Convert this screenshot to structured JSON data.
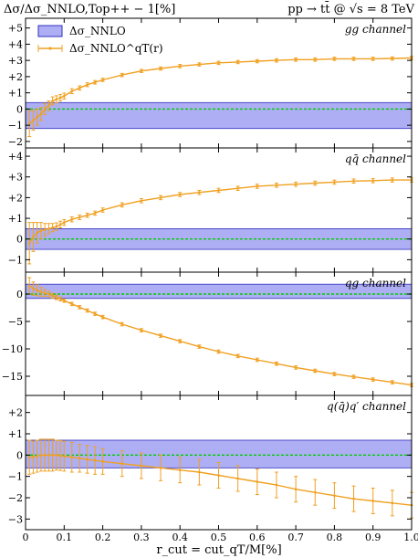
{
  "header": {
    "left_title": "Δσ/Δσ_NNLO,Top++ − 1[%]",
    "right_title": "pp → tt̄ @ √s = 8 TeV"
  },
  "legend": [
    {
      "label": "Δσ_NNLO",
      "color": "#8080ee"
    },
    {
      "label": "Δσ_NNLO^qT(r)",
      "color": "#f0a020"
    }
  ],
  "xlabel": "r_cut = cut_qT/M[%]",
  "colors": {
    "band": "#8c8cf0",
    "band_edge": "#3030c0",
    "series": "#f0a020",
    "zero_line": "#00cc00"
  },
  "chart_data": [
    {
      "type": "line",
      "channel": "gg channel",
      "ylim": [
        -2.4,
        5.6
      ],
      "yticks": [
        -2,
        -1,
        0,
        1,
        2,
        3,
        4,
        5
      ],
      "ytick_labels": [
        "−2",
        "−1",
        "0",
        "+1",
        "+2",
        "+3",
        "+4",
        "+5"
      ],
      "band": [
        -1.2,
        0.4
      ],
      "points": [
        [
          0.01,
          -0.9
        ],
        [
          0.02,
          -0.7
        ],
        [
          0.03,
          -0.5
        ],
        [
          0.04,
          -0.3
        ],
        [
          0.05,
          0.0
        ],
        [
          0.06,
          0.2
        ],
        [
          0.07,
          0.5
        ],
        [
          0.08,
          0.6
        ],
        [
          0.09,
          0.7
        ],
        [
          0.1,
          0.8
        ],
        [
          0.12,
          1.1
        ],
        [
          0.14,
          1.3
        ],
        [
          0.16,
          1.5
        ],
        [
          0.18,
          1.65
        ],
        [
          0.2,
          1.8
        ],
        [
          0.25,
          2.1
        ],
        [
          0.3,
          2.35
        ],
        [
          0.35,
          2.5
        ],
        [
          0.4,
          2.65
        ],
        [
          0.45,
          2.75
        ],
        [
          0.5,
          2.85
        ],
        [
          0.55,
          2.9
        ],
        [
          0.6,
          2.95
        ],
        [
          0.65,
          3.0
        ],
        [
          0.7,
          3.05
        ],
        [
          0.75,
          3.05
        ],
        [
          0.8,
          3.1
        ],
        [
          0.85,
          3.1
        ],
        [
          0.9,
          3.1
        ],
        [
          0.95,
          3.12
        ],
        [
          1.0,
          3.15
        ]
      ],
      "errors": [
        [
          0.01,
          0.8
        ],
        [
          0.02,
          0.6
        ],
        [
          0.03,
          0.5
        ],
        [
          0.04,
          0.4
        ],
        [
          0.05,
          0.35
        ],
        [
          0.06,
          0.3
        ],
        [
          0.07,
          0.25
        ],
        [
          0.08,
          0.22
        ],
        [
          0.09,
          0.2
        ],
        [
          0.1,
          0.18
        ],
        [
          0.12,
          0.15
        ],
        [
          0.14,
          0.13
        ],
        [
          0.16,
          0.12
        ],
        [
          0.18,
          0.11
        ],
        [
          0.2,
          0.1
        ],
        [
          0.25,
          0.1
        ],
        [
          0.3,
          0.1
        ],
        [
          0.35,
          0.1
        ],
        [
          0.4,
          0.1
        ],
        [
          0.45,
          0.1
        ],
        [
          0.5,
          0.1
        ],
        [
          0.55,
          0.1
        ],
        [
          0.6,
          0.1
        ],
        [
          0.65,
          0.1
        ],
        [
          0.7,
          0.1
        ],
        [
          0.75,
          0.1
        ],
        [
          0.8,
          0.1
        ],
        [
          0.85,
          0.1
        ],
        [
          0.9,
          0.1
        ],
        [
          0.95,
          0.1
        ],
        [
          1.0,
          0.1
        ]
      ]
    },
    {
      "type": "line",
      "channel": "qq̄ channel",
      "ylim": [
        -1.6,
        4.4
      ],
      "yticks": [
        -1,
        0,
        1,
        2,
        3,
        4
      ],
      "ytick_labels": [
        "−1",
        "0",
        "+1",
        "+2",
        "+3",
        "+4"
      ],
      "band": [
        -0.5,
        0.5
      ],
      "points": [
        [
          0.01,
          -0.2
        ],
        [
          0.02,
          0.1
        ],
        [
          0.03,
          0.3
        ],
        [
          0.04,
          0.4
        ],
        [
          0.05,
          0.45
        ],
        [
          0.06,
          0.5
        ],
        [
          0.07,
          0.55
        ],
        [
          0.08,
          0.6
        ],
        [
          0.09,
          0.7
        ],
        [
          0.1,
          0.8
        ],
        [
          0.12,
          0.95
        ],
        [
          0.14,
          1.05
        ],
        [
          0.16,
          1.15
        ],
        [
          0.18,
          1.25
        ],
        [
          0.2,
          1.4
        ],
        [
          0.25,
          1.65
        ],
        [
          0.3,
          1.85
        ],
        [
          0.35,
          2.0
        ],
        [
          0.4,
          2.15
        ],
        [
          0.45,
          2.25
        ],
        [
          0.5,
          2.35
        ],
        [
          0.55,
          2.45
        ],
        [
          0.6,
          2.55
        ],
        [
          0.65,
          2.6
        ],
        [
          0.7,
          2.65
        ],
        [
          0.75,
          2.7
        ],
        [
          0.8,
          2.75
        ],
        [
          0.85,
          2.8
        ],
        [
          0.9,
          2.82
        ],
        [
          0.95,
          2.85
        ],
        [
          1.0,
          2.85
        ]
      ],
      "errors": [
        [
          0.01,
          1.0
        ],
        [
          0.02,
          0.7
        ],
        [
          0.03,
          0.5
        ],
        [
          0.04,
          0.4
        ],
        [
          0.05,
          0.3
        ],
        [
          0.06,
          0.25
        ],
        [
          0.07,
          0.2
        ],
        [
          0.08,
          0.18
        ],
        [
          0.09,
          0.16
        ],
        [
          0.1,
          0.14
        ],
        [
          0.12,
          0.12
        ],
        [
          0.14,
          0.11
        ],
        [
          0.16,
          0.1
        ],
        [
          0.18,
          0.1
        ],
        [
          0.2,
          0.1
        ],
        [
          0.25,
          0.1
        ],
        [
          0.3,
          0.1
        ],
        [
          0.35,
          0.1
        ],
        [
          0.4,
          0.1
        ],
        [
          0.45,
          0.1
        ],
        [
          0.5,
          0.1
        ],
        [
          0.55,
          0.1
        ],
        [
          0.6,
          0.1
        ],
        [
          0.65,
          0.1
        ],
        [
          0.7,
          0.1
        ],
        [
          0.75,
          0.1
        ],
        [
          0.8,
          0.1
        ],
        [
          0.85,
          0.1
        ],
        [
          0.9,
          0.1
        ],
        [
          0.95,
          0.1
        ],
        [
          1.0,
          0.1
        ]
      ]
    },
    {
      "type": "line",
      "channel": "qg channel",
      "ylim": [
        -18.5,
        4
      ],
      "yticks": [
        -15,
        -10,
        -5,
        0
      ],
      "ytick_labels": [
        "−15",
        "−10",
        "−5",
        "0"
      ],
      "band": [
        -0.8,
        1.8
      ],
      "points": [
        [
          0.01,
          1.5
        ],
        [
          0.02,
          1.0
        ],
        [
          0.03,
          0.7
        ],
        [
          0.04,
          0.4
        ],
        [
          0.05,
          0.2
        ],
        [
          0.06,
          0.0
        ],
        [
          0.07,
          -0.3
        ],
        [
          0.08,
          -0.6
        ],
        [
          0.09,
          -0.9
        ],
        [
          0.1,
          -1.2
        ],
        [
          0.12,
          -1.8
        ],
        [
          0.14,
          -2.4
        ],
        [
          0.16,
          -3.0
        ],
        [
          0.18,
          -3.6
        ],
        [
          0.2,
          -4.2
        ],
        [
          0.25,
          -5.5
        ],
        [
          0.3,
          -6.6
        ],
        [
          0.35,
          -7.6
        ],
        [
          0.4,
          -8.6
        ],
        [
          0.45,
          -9.6
        ],
        [
          0.5,
          -10.5
        ],
        [
          0.55,
          -11.3
        ],
        [
          0.6,
          -12.0
        ],
        [
          0.65,
          -12.7
        ],
        [
          0.7,
          -13.4
        ],
        [
          0.75,
          -14.0
        ],
        [
          0.8,
          -14.6
        ],
        [
          0.85,
          -15.1
        ],
        [
          0.9,
          -15.6
        ],
        [
          0.95,
          -16.1
        ],
        [
          1.0,
          -16.6
        ]
      ],
      "errors": [
        [
          0.01,
          1.5
        ],
        [
          0.02,
          1.2
        ],
        [
          0.03,
          1.0
        ],
        [
          0.04,
          0.8
        ],
        [
          0.05,
          0.6
        ],
        [
          0.06,
          0.5
        ],
        [
          0.07,
          0.45
        ],
        [
          0.08,
          0.4
        ],
        [
          0.09,
          0.35
        ],
        [
          0.1,
          0.3
        ],
        [
          0.12,
          0.3
        ],
        [
          0.14,
          0.3
        ],
        [
          0.16,
          0.3
        ],
        [
          0.18,
          0.3
        ],
        [
          0.2,
          0.3
        ],
        [
          0.25,
          0.3
        ],
        [
          0.3,
          0.3
        ],
        [
          0.35,
          0.3
        ],
        [
          0.4,
          0.3
        ],
        [
          0.45,
          0.3
        ],
        [
          0.5,
          0.3
        ],
        [
          0.55,
          0.3
        ],
        [
          0.6,
          0.3
        ],
        [
          0.65,
          0.3
        ],
        [
          0.7,
          0.3
        ],
        [
          0.75,
          0.3
        ],
        [
          0.8,
          0.3
        ],
        [
          0.85,
          0.3
        ],
        [
          0.9,
          0.3
        ],
        [
          0.95,
          0.3
        ],
        [
          1.0,
          0.3
        ]
      ]
    },
    {
      "type": "line",
      "channel": "q(q̄)q′ channel",
      "ylim": [
        -3.5,
        2.8
      ],
      "yticks": [
        -3,
        -2,
        -1,
        0,
        1,
        2
      ],
      "ytick_labels": [
        "−3",
        "−2",
        "−1",
        "0",
        "+1",
        "+2"
      ],
      "band": [
        -0.6,
        0.7
      ],
      "points": [
        [
          0.01,
          -0.1
        ],
        [
          0.02,
          -0.1
        ],
        [
          0.03,
          -0.05
        ],
        [
          0.04,
          0.0
        ],
        [
          0.05,
          0.0
        ],
        [
          0.06,
          0.0
        ],
        [
          0.07,
          0.0
        ],
        [
          0.08,
          0.0
        ],
        [
          0.09,
          -0.02
        ],
        [
          0.1,
          -0.05
        ],
        [
          0.12,
          -0.1
        ],
        [
          0.14,
          -0.15
        ],
        [
          0.16,
          -0.2
        ],
        [
          0.18,
          -0.25
        ],
        [
          0.2,
          -0.3
        ],
        [
          0.25,
          -0.4
        ],
        [
          0.3,
          -0.5
        ],
        [
          0.35,
          -0.6
        ],
        [
          0.4,
          -0.7
        ],
        [
          0.45,
          -0.8
        ],
        [
          0.5,
          -0.95
        ],
        [
          0.55,
          -1.1
        ],
        [
          0.6,
          -1.25
        ],
        [
          0.65,
          -1.4
        ],
        [
          0.7,
          -1.6
        ],
        [
          0.75,
          -1.75
        ],
        [
          0.8,
          -1.9
        ],
        [
          0.85,
          -2.05
        ],
        [
          0.9,
          -2.15
        ],
        [
          0.95,
          -2.25
        ],
        [
          1.0,
          -2.35
        ]
      ],
      "errors": [
        [
          0.01,
          0.8
        ],
        [
          0.02,
          0.75
        ],
        [
          0.03,
          0.75
        ],
        [
          0.04,
          0.75
        ],
        [
          0.05,
          0.75
        ],
        [
          0.06,
          0.75
        ],
        [
          0.07,
          0.75
        ],
        [
          0.08,
          0.7
        ],
        [
          0.09,
          0.7
        ],
        [
          0.1,
          0.7
        ],
        [
          0.12,
          0.7
        ],
        [
          0.14,
          0.65
        ],
        [
          0.16,
          0.65
        ],
        [
          0.18,
          0.65
        ],
        [
          0.2,
          0.6
        ],
        [
          0.25,
          0.6
        ],
        [
          0.3,
          0.6
        ],
        [
          0.35,
          0.6
        ],
        [
          0.4,
          0.6
        ],
        [
          0.45,
          0.6
        ],
        [
          0.5,
          0.6
        ],
        [
          0.55,
          0.6
        ],
        [
          0.6,
          0.6
        ],
        [
          0.65,
          0.6
        ],
        [
          0.7,
          0.6
        ],
        [
          0.75,
          0.6
        ],
        [
          0.8,
          0.6
        ],
        [
          0.85,
          0.6
        ],
        [
          0.9,
          0.6
        ],
        [
          0.95,
          0.6
        ],
        [
          1.0,
          0.6
        ]
      ]
    }
  ],
  "x_axis": {
    "range": [
      0,
      1.0
    ],
    "ticks": [
      0,
      0.1,
      0.2,
      0.3,
      0.4,
      0.5,
      0.6,
      0.7,
      0.8,
      0.9,
      1.0
    ],
    "tick_labels": [
      "0",
      "0.1",
      "0.2",
      "0.3",
      "0.4",
      "0.5",
      "0.6",
      "0.7",
      "0.8",
      "0.9",
      "1.0"
    ]
  }
}
